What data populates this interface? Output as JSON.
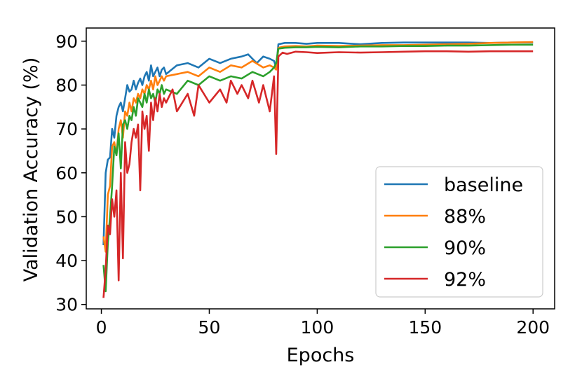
{
  "chart_data": {
    "type": "line",
    "title": "",
    "xlabel": "Epochs",
    "ylabel": "Validation Accuracy (%)",
    "xlim": [
      -7,
      210
    ],
    "ylim": [
      29,
      93
    ],
    "xticks": [
      0,
      50,
      100,
      150,
      200
    ],
    "yticks": [
      30,
      40,
      50,
      60,
      70,
      80,
      90
    ],
    "grid": false,
    "legend_position": "lower right",
    "series": [
      {
        "name": "baseline",
        "color": "#1f77b4",
        "points": [
          [
            1,
            43.5
          ],
          [
            2,
            60
          ],
          [
            3,
            63
          ],
          [
            4,
            63.5
          ],
          [
            5,
            70
          ],
          [
            6,
            68
          ],
          [
            7,
            73
          ],
          [
            8,
            75
          ],
          [
            9,
            76
          ],
          [
            10,
            74
          ],
          [
            11,
            77
          ],
          [
            12,
            80
          ],
          [
            13,
            78.5
          ],
          [
            14,
            79
          ],
          [
            15,
            81
          ],
          [
            16,
            79
          ],
          [
            17,
            80.5
          ],
          [
            18,
            81.5
          ],
          [
            19,
            80
          ],
          [
            20,
            82
          ],
          [
            21,
            83
          ],
          [
            22,
            81
          ],
          [
            23,
            84.5
          ],
          [
            24,
            82
          ],
          [
            25,
            83
          ],
          [
            26,
            84
          ],
          [
            27,
            82
          ],
          [
            28,
            83.5
          ],
          [
            29,
            84
          ],
          [
            30,
            82.5
          ],
          [
            35,
            84.5
          ],
          [
            40,
            85
          ],
          [
            45,
            84
          ],
          [
            50,
            86
          ],
          [
            55,
            85
          ],
          [
            60,
            86
          ],
          [
            65,
            86.5
          ],
          [
            68,
            87
          ],
          [
            70,
            86
          ],
          [
            72,
            85
          ],
          [
            75,
            86.5
          ],
          [
            78,
            86
          ],
          [
            80,
            85.5
          ],
          [
            81,
            84
          ],
          [
            82,
            89.3
          ],
          [
            85,
            89.6
          ],
          [
            90,
            89.6
          ],
          [
            95,
            89.4
          ],
          [
            100,
            89.6
          ],
          [
            110,
            89.6
          ],
          [
            120,
            89.3
          ],
          [
            130,
            89.6
          ],
          [
            140,
            89.7
          ],
          [
            150,
            89.7
          ],
          [
            160,
            89.7
          ],
          [
            170,
            89.7
          ],
          [
            180,
            89.6
          ],
          [
            190,
            89.7
          ],
          [
            200,
            89.7
          ]
        ]
      },
      {
        "name": "88%",
        "color": "#ff7f0e",
        "points": [
          [
            1,
            45.5
          ],
          [
            2,
            42
          ],
          [
            3,
            55
          ],
          [
            4,
            57
          ],
          [
            5,
            66
          ],
          [
            6,
            67
          ],
          [
            7,
            64
          ],
          [
            8,
            70
          ],
          [
            9,
            72
          ],
          [
            10,
            68
          ],
          [
            11,
            74
          ],
          [
            12,
            73
          ],
          [
            13,
            76
          ],
          [
            14,
            74
          ],
          [
            15,
            77
          ],
          [
            16,
            76
          ],
          [
            17,
            78
          ],
          [
            18,
            77
          ],
          [
            19,
            79
          ],
          [
            20,
            78
          ],
          [
            21,
            80
          ],
          [
            22,
            79
          ],
          [
            23,
            81
          ],
          [
            24,
            79
          ],
          [
            25,
            82
          ],
          [
            26,
            80
          ],
          [
            27,
            81
          ],
          [
            28,
            82
          ],
          [
            29,
            81
          ],
          [
            30,
            82
          ],
          [
            35,
            82.5
          ],
          [
            40,
            83
          ],
          [
            45,
            82
          ],
          [
            50,
            84
          ],
          [
            55,
            83
          ],
          [
            60,
            84.5
          ],
          [
            65,
            84
          ],
          [
            70,
            85.5
          ],
          [
            75,
            84
          ],
          [
            78,
            84.5
          ],
          [
            80,
            84
          ],
          [
            81,
            83.5
          ],
          [
            82,
            88.5
          ],
          [
            85,
            88.8
          ],
          [
            90,
            88.9
          ],
          [
            95,
            88.8
          ],
          [
            100,
            89
          ],
          [
            110,
            88.9
          ],
          [
            120,
            89
          ],
          [
            130,
            89.1
          ],
          [
            140,
            89.1
          ],
          [
            150,
            89.2
          ],
          [
            160,
            89.3
          ],
          [
            170,
            89.4
          ],
          [
            180,
            89.6
          ],
          [
            190,
            89.7
          ],
          [
            200,
            89.8
          ]
        ]
      },
      {
        "name": "90%",
        "color": "#2ca02c",
        "points": [
          [
            1,
            39
          ],
          [
            2,
            33
          ],
          [
            3,
            44
          ],
          [
            4,
            50
          ],
          [
            5,
            57
          ],
          [
            6,
            66
          ],
          [
            7,
            64
          ],
          [
            8,
            69
          ],
          [
            9,
            61
          ],
          [
            10,
            71
          ],
          [
            11,
            72
          ],
          [
            12,
            70
          ],
          [
            13,
            73
          ],
          [
            14,
            72
          ],
          [
            15,
            75
          ],
          [
            16,
            73
          ],
          [
            17,
            77
          ],
          [
            18,
            76
          ],
          [
            19,
            75
          ],
          [
            20,
            78
          ],
          [
            21,
            76
          ],
          [
            22,
            79
          ],
          [
            23,
            77
          ],
          [
            24,
            78
          ],
          [
            25,
            76
          ],
          [
            26,
            79
          ],
          [
            27,
            78
          ],
          [
            28,
            80
          ],
          [
            29,
            78
          ],
          [
            30,
            79
          ],
          [
            35,
            78
          ],
          [
            40,
            81
          ],
          [
            45,
            80
          ],
          [
            50,
            82
          ],
          [
            55,
            81
          ],
          [
            60,
            82
          ],
          [
            65,
            81.5
          ],
          [
            70,
            83
          ],
          [
            75,
            82
          ],
          [
            78,
            83
          ],
          [
            80,
            84
          ],
          [
            81,
            85
          ],
          [
            82,
            88.3
          ],
          [
            85,
            88.5
          ],
          [
            90,
            88.6
          ],
          [
            95,
            88.6
          ],
          [
            100,
            88.7
          ],
          [
            110,
            88.6
          ],
          [
            120,
            88.8
          ],
          [
            130,
            88.8
          ],
          [
            140,
            88.9
          ],
          [
            150,
            88.9
          ],
          [
            160,
            89
          ],
          [
            170,
            89
          ],
          [
            180,
            89.1
          ],
          [
            190,
            89.2
          ],
          [
            200,
            89.2
          ]
        ]
      },
      {
        "name": "92%",
        "color": "#d62728",
        "points": [
          [
            1,
            31.5
          ],
          [
            2,
            38
          ],
          [
            3,
            48
          ],
          [
            4,
            46
          ],
          [
            5,
            54
          ],
          [
            6,
            50
          ],
          [
            7,
            56
          ],
          [
            8,
            35.5
          ],
          [
            9,
            60
          ],
          [
            10,
            40.5
          ],
          [
            11,
            67
          ],
          [
            12,
            60
          ],
          [
            13,
            62
          ],
          [
            14,
            67
          ],
          [
            15,
            70
          ],
          [
            16,
            68
          ],
          [
            17,
            71
          ],
          [
            18,
            56
          ],
          [
            19,
            74
          ],
          [
            20,
            70
          ],
          [
            21,
            73
          ],
          [
            22,
            65
          ],
          [
            23,
            76
          ],
          [
            24,
            72
          ],
          [
            25,
            77
          ],
          [
            26,
            74
          ],
          [
            27,
            78
          ],
          [
            28,
            75
          ],
          [
            29,
            77
          ],
          [
            30,
            76
          ],
          [
            33,
            79
          ],
          [
            35,
            74
          ],
          [
            40,
            78
          ],
          [
            43,
            73
          ],
          [
            45,
            80
          ],
          [
            50,
            76
          ],
          [
            55,
            79
          ],
          [
            58,
            76
          ],
          [
            60,
            81
          ],
          [
            63,
            78
          ],
          [
            65,
            80
          ],
          [
            68,
            77
          ],
          [
            70,
            81
          ],
          [
            73,
            76
          ],
          [
            75,
            80
          ],
          [
            78,
            74
          ],
          [
            80,
            82
          ],
          [
            81,
            64.3
          ],
          [
            82,
            86.5
          ],
          [
            84,
            87.4
          ],
          [
            86,
            87.1
          ],
          [
            90,
            87.6
          ],
          [
            95,
            87.5
          ],
          [
            100,
            87.3
          ],
          [
            110,
            87.5
          ],
          [
            120,
            87.4
          ],
          [
            130,
            87.5
          ],
          [
            140,
            87.6
          ],
          [
            150,
            87.7
          ],
          [
            160,
            87.7
          ],
          [
            170,
            87.6
          ],
          [
            180,
            87.7
          ],
          [
            190,
            87.7
          ],
          [
            200,
            87.7
          ]
        ]
      }
    ]
  }
}
